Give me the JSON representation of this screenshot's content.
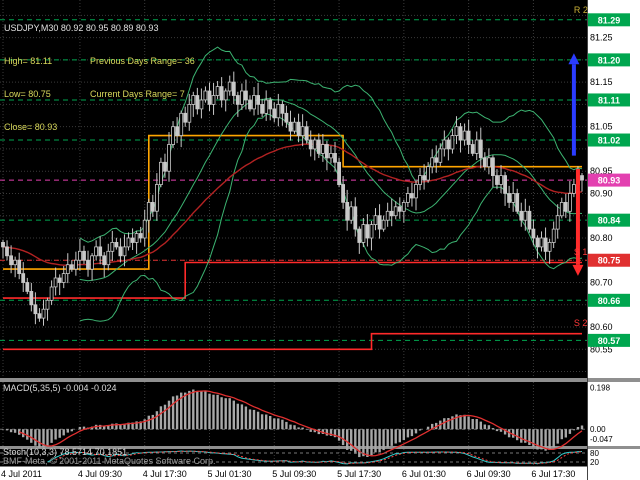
{
  "info": {
    "symbol_line": "USDJPY,M30 80.92 80.95 80.89 80.93",
    "high": "High= 81.11",
    "prev_range": "Previous Days Range= 36",
    "low": "Low= 80.75",
    "curr_range": "Current Days Range= 7",
    "close": "Close= 80.93"
  },
  "footer": {
    "copyright": "BMF-Meta, © 2001-2011 MetaQuotes Software Corp."
  },
  "chart_data": {
    "type": "candlestick",
    "main": {
      "symbol": "USDJPY",
      "timeframe": "M30",
      "price_range": [
        80.49,
        81.33
      ],
      "note": "closes estimated from pixels; candle wicks derived for rendering",
      "closes": [
        80.78,
        80.76,
        80.74,
        80.75,
        80.72,
        80.7,
        80.68,
        80.65,
        80.63,
        80.62,
        80.64,
        80.66,
        80.69,
        80.71,
        80.7,
        80.72,
        80.74,
        80.73,
        80.75,
        80.77,
        80.75,
        80.73,
        80.76,
        80.78,
        80.76,
        80.74,
        80.77,
        80.79,
        80.78,
        80.76,
        80.78,
        80.8,
        80.79,
        80.81,
        80.8,
        80.84,
        80.88,
        80.86,
        80.92,
        80.97,
        80.95,
        81.01,
        81.05,
        81.03,
        81.08,
        81.06,
        81.1,
        81.12,
        81.09,
        81.11,
        81.13,
        81.1,
        81.12,
        81.14,
        81.11,
        81.13,
        81.15,
        81.12,
        81.1,
        81.13,
        81.11,
        81.09,
        81.12,
        81.1,
        81.08,
        81.11,
        81.09,
        81.07,
        81.1,
        81.08,
        81.06,
        81.04,
        81.06,
        81.03,
        81.05,
        81.02,
        81.0,
        81.02,
        80.99,
        81.01,
        80.98,
        80.99,
        80.97,
        80.92,
        80.88,
        80.84,
        80.87,
        80.82,
        80.79,
        80.83,
        80.8,
        80.83,
        80.85,
        80.82,
        80.84,
        80.86,
        80.85,
        80.87,
        80.86,
        80.88,
        80.9,
        80.89,
        80.92,
        80.94,
        80.93,
        80.96,
        80.98,
        80.97,
        81.0,
        81.02,
        81.0,
        81.03,
        81.05,
        81.02,
        81.04,
        81.01,
        80.99,
        81.02,
        80.98,
        80.96,
        80.98,
        80.94,
        80.92,
        80.94,
        80.9,
        80.88,
        80.9,
        80.86,
        80.84,
        80.86,
        80.82,
        80.8,
        80.78,
        80.8,
        80.77,
        80.79,
        80.82,
        80.85,
        80.88,
        80.86,
        80.9,
        80.92,
        80.94,
        80.93
      ],
      "time_labels": [
        {
          "text": "4 Jul 2011",
          "bar": 0
        },
        {
          "text": "4 Jul 09:30",
          "bar": 19
        },
        {
          "text": "4 Jul 17:30",
          "bar": 35
        },
        {
          "text": "5 Jul 01:30",
          "bar": 51
        },
        {
          "text": "5 Jul 09:30",
          "bar": 67
        },
        {
          "text": "5 Jul 17:30",
          "bar": 83
        },
        {
          "text": "6 Jul 01:30",
          "bar": 99
        },
        {
          "text": "6 Jul 09:30",
          "bar": 115
        },
        {
          "text": "6 Jul 17:30",
          "bar": 131
        }
      ],
      "axis_labels": [
        81.25,
        81.15,
        81.05,
        80.95,
        80.9,
        80.8,
        80.7,
        80.6,
        80.55
      ],
      "levels": [
        {
          "value": 81.29,
          "color": "#00A64F"
        },
        {
          "value": 81.2,
          "color": "#00A64F"
        },
        {
          "value": 81.11,
          "color": "#00A64F"
        },
        {
          "value": 81.02,
          "color": "#00A64F"
        },
        {
          "value": 80.93,
          "color": "#E340B0"
        },
        {
          "value": 80.84,
          "color": "#00A64F"
        },
        {
          "value": 80.75,
          "color": "#E03030"
        },
        {
          "value": 80.66,
          "color": "#00A64F"
        },
        {
          "value": 80.57,
          "color": "#00A64F"
        }
      ],
      "bollinger": {
        "period": 20,
        "deviation": 2,
        "color": "#3CB371"
      },
      "ma": {
        "period": 50,
        "color": "#B22222"
      },
      "steps": [
        {
          "name": "pivot",
          "color": "#FFA500",
          "segments": [
            [
              0,
              36,
              80.73
            ],
            [
              36,
              84,
              81.03
            ],
            [
              84,
              143,
              80.96
            ]
          ]
        },
        {
          "name": "s1",
          "color": "#FF2A2A",
          "segments": [
            [
              0,
              45,
              80.665
            ],
            [
              45,
              143,
              80.745
            ]
          ]
        },
        {
          "name": "s2",
          "color": "#FF2A2A",
          "segments": [
            [
              0,
              91,
              80.55
            ],
            [
              91,
              143,
              80.585
            ]
          ]
        }
      ],
      "annotations": [
        {
          "text": "R 2",
          "color": "#C9B037",
          "bar": 141,
          "price": 81.305
        },
        {
          "text": "S 1",
          "color": "#FF3A3A",
          "bar": 141,
          "price": 80.762
        },
        {
          "text": "S 2",
          "color": "#FF3A3A",
          "bar": 141,
          "price": 80.602
        }
      ],
      "arrows": [
        {
          "dir": "up",
          "color": "#2B3CFF",
          "bar": 141,
          "from": 80.985,
          "to": 81.215
        },
        {
          "dir": "down",
          "color": "#FF2B2B",
          "bar": 142,
          "from": 80.955,
          "to": 80.715
        }
      ]
    },
    "macd": {
      "label": "MACD(5,35,5) -0.004 -0.024",
      "fast": 5,
      "slow": 35,
      "signal": 5,
      "scale_max": 0.22,
      "scale_min": -0.075,
      "histogram_color": "#A8A8A8",
      "signal_color": "#E03030",
      "axis_labels": [
        {
          "text": "0.198",
          "value": 0.198
        },
        {
          "text": "0.00",
          "value": 0
        },
        {
          "text": "-0.047",
          "value": -0.047
        }
      ]
    },
    "stoch": {
      "label": "Stoch(10,3,3) 78.5714 70.1851",
      "k": 10,
      "slowing": 3,
      "d": 3,
      "main_color": "#35CFCF",
      "signal_color": "#FF4040",
      "levels": [
        80,
        20
      ],
      "axis_labels": [
        {
          "text": "80",
          "value": 80
        },
        {
          "text": "20",
          "value": 20
        }
      ]
    }
  }
}
